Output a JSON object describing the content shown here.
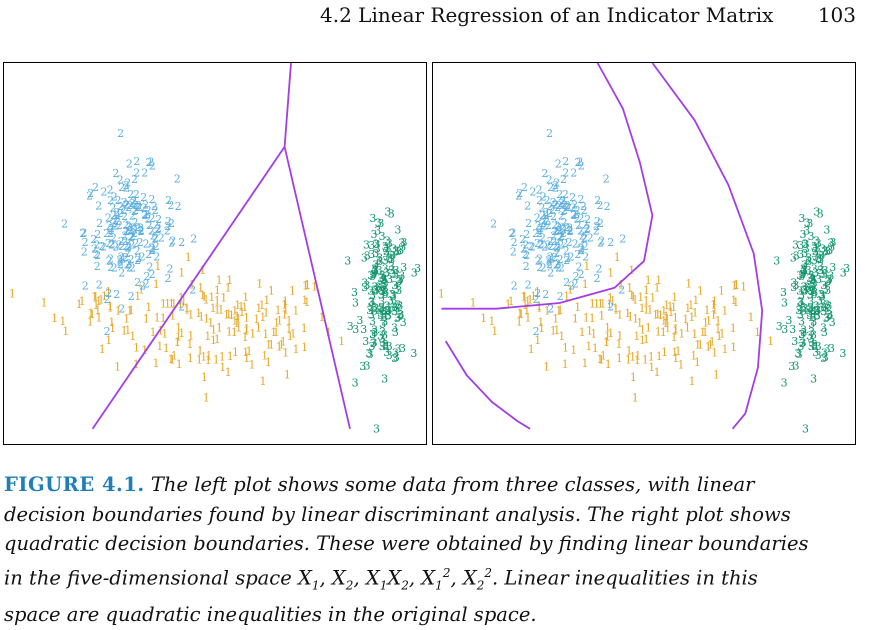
{
  "header": {
    "section": "4.2 Linear Regression of an Indicator Matrix",
    "page_number": "103"
  },
  "caption": {
    "label": "FIGURE 4.1.",
    "lines": [
      "The left plot shows some data from three classes, with linear",
      "decision boundaries found by linear discriminant analysis. The right plot shows",
      "quadratic decision boundaries. These were obtained by finding linear boundaries",
      "in the five-dimensional space",
      "Linear inequalities in this",
      "space are quadratic inequalities in the original space."
    ]
  },
  "colors": {
    "class_1": "#e6a92b",
    "class_2": "#5aaee0",
    "class_3": "#12966e",
    "boundary": "#a23ee6"
  },
  "chart_data": [
    {
      "type": "scatter",
      "panel": "left",
      "title": "",
      "xlabel": "",
      "ylabel": "",
      "grid": false,
      "series": [
        {
          "name": "1",
          "marker": "1",
          "clusters": [
            {
              "cx": 0.52,
              "cy": 0.3,
              "sx": 0.22,
              "sy": 0.12,
              "n": 160
            },
            {
              "cx": 0.22,
              "cy": 0.35,
              "sx": 0.12,
              "sy": 0.05,
              "n": 25
            }
          ]
        },
        {
          "name": "2",
          "marker": "2",
          "clusters": [
            {
              "cx": 0.3,
              "cy": 0.55,
              "sx": 0.09,
              "sy": 0.13,
              "n": 190
            }
          ]
        },
        {
          "name": "3",
          "marker": "3",
          "clusters": [
            {
              "cx": 0.9,
              "cy": 0.38,
              "sx": 0.05,
              "sy": 0.15,
              "n": 180
            }
          ]
        }
      ],
      "boundaries": [
        [
          [
            0.21,
            0.04
          ],
          [
            0.665,
            0.78
          ]
        ],
        [
          [
            0.665,
            0.78
          ],
          [
            0.68,
            1.0
          ]
        ],
        [
          [
            0.665,
            0.78
          ],
          [
            0.82,
            0.04
          ]
        ]
      ]
    },
    {
      "type": "scatter",
      "panel": "right",
      "title": "",
      "xlabel": "",
      "ylabel": "",
      "grid": false,
      "series": [
        {
          "name": "1",
          "marker": "1"
        },
        {
          "name": "2",
          "marker": "2"
        },
        {
          "name": "3",
          "marker": "3"
        }
      ],
      "boundaries": [
        [
          [
            0.39,
            1.0
          ],
          [
            0.45,
            0.88
          ],
          [
            0.49,
            0.74
          ],
          [
            0.52,
            0.6
          ],
          [
            0.5,
            0.48
          ],
          [
            0.43,
            0.41
          ],
          [
            0.3,
            0.37
          ],
          [
            0.15,
            0.355
          ],
          [
            0.02,
            0.355
          ]
        ],
        [
          [
            0.03,
            0.27
          ],
          [
            0.08,
            0.18
          ],
          [
            0.14,
            0.11
          ],
          [
            0.2,
            0.06
          ],
          [
            0.23,
            0.04
          ]
        ],
        [
          [
            0.52,
            1.0
          ],
          [
            0.62,
            0.85
          ],
          [
            0.7,
            0.68
          ],
          [
            0.76,
            0.5
          ],
          [
            0.78,
            0.35
          ],
          [
            0.77,
            0.2
          ],
          [
            0.74,
            0.08
          ],
          [
            0.71,
            0.04
          ]
        ]
      ]
    }
  ]
}
